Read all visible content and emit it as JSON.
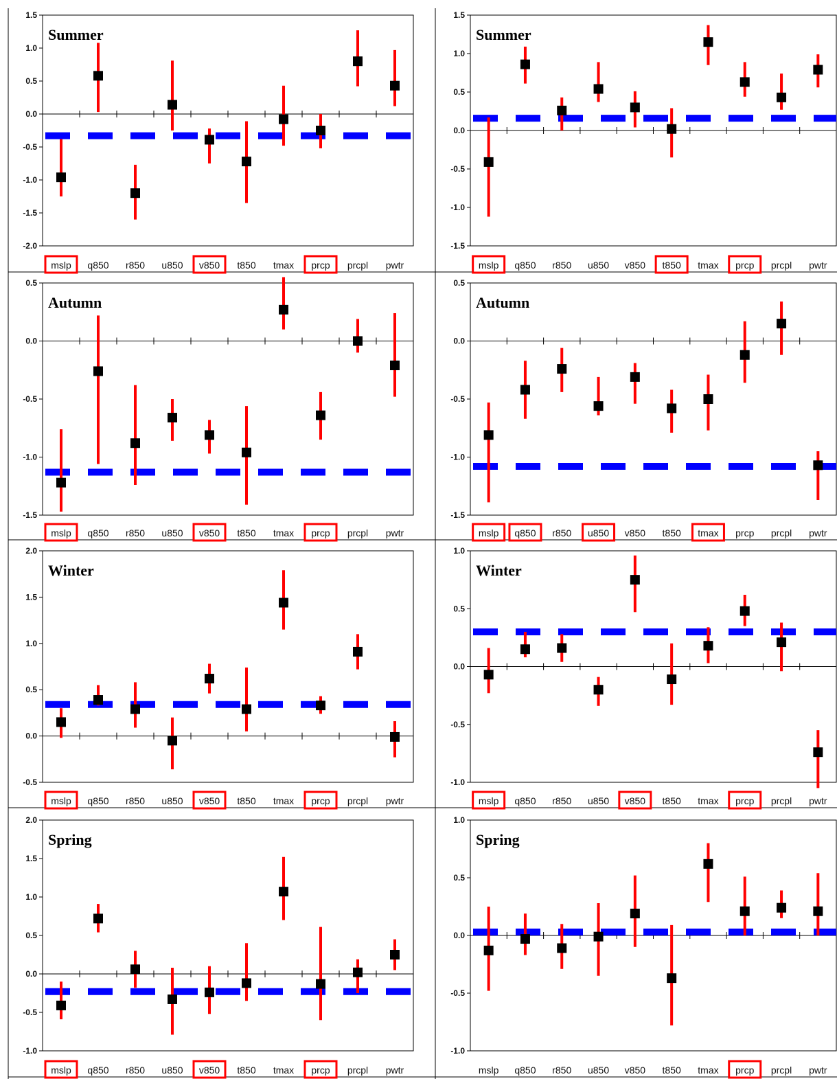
{
  "categories": [
    "mslp",
    "q850",
    "r850",
    "u850",
    "v850",
    "t850",
    "tmax",
    "prcp",
    "prcpl",
    "pwtr"
  ],
  "colors": {
    "marker": "#000000",
    "error_bar": "#ff0000",
    "reference_line": "#0000ff",
    "highlight_box": "#ff0000"
  },
  "chart_data": [
    {
      "type": "scatter",
      "title": "Summer",
      "ylim": [
        -2.0,
        1.5
      ],
      "yticks": [
        "1.5",
        "1.0",
        "0.5",
        "0.0",
        "-0.5",
        "-1.0",
        "-1.5",
        "-2.0"
      ],
      "reference": -0.33,
      "highlighted": [
        "mslp",
        "v850",
        "prcp"
      ],
      "values": [
        -0.96,
        0.58,
        -1.2,
        0.14,
        -0.39,
        -0.72,
        -0.08,
        -0.25,
        0.8,
        0.43
      ],
      "lower": [
        -1.25,
        0.03,
        -1.6,
        -0.25,
        -0.75,
        -1.35,
        -0.48,
        -0.52,
        0.42,
        0.12
      ],
      "upper": [
        -0.38,
        1.08,
        -0.77,
        0.81,
        -0.22,
        -0.11,
        0.43,
        0.0,
        1.27,
        0.97
      ]
    },
    {
      "type": "scatter",
      "title": "Summer",
      "ylim": [
        -1.5,
        1.5
      ],
      "yticks": [
        "1.5",
        "1.0",
        "0.5",
        "0.0",
        "-0.5",
        "-1.0",
        "-1.5"
      ],
      "reference": 0.16,
      "highlighted": [
        "mslp",
        "t850",
        "prcp"
      ],
      "values": [
        -0.41,
        0.86,
        0.26,
        0.54,
        0.3,
        0.02,
        1.15,
        0.63,
        0.43,
        0.79
      ],
      "lower": [
        -1.12,
        0.61,
        0.0,
        0.37,
        0.04,
        -0.35,
        0.85,
        0.44,
        0.27,
        0.56
      ],
      "upper": [
        0.17,
        1.09,
        0.43,
        0.89,
        0.51,
        0.29,
        1.37,
        0.89,
        0.74,
        0.99
      ]
    },
    {
      "type": "scatter",
      "title": "Autumn",
      "ylim": [
        -1.5,
        0.5
      ],
      "yticks": [
        "0.5",
        "0.0",
        "-0.5",
        "-1.0",
        "-1.5"
      ],
      "reference": -1.13,
      "highlighted": [
        "mslp",
        "v850",
        "prcp"
      ],
      "values": [
        -1.22,
        -0.26,
        -0.88,
        -0.66,
        -0.81,
        -0.96,
        0.27,
        -0.64,
        0.0,
        -0.21
      ],
      "lower": [
        -1.47,
        -1.06,
        -1.24,
        -0.86,
        -0.97,
        -1.41,
        0.1,
        -0.85,
        -0.1,
        -0.48
      ],
      "upper": [
        -0.76,
        0.22,
        -0.38,
        -0.5,
        -0.68,
        -0.56,
        0.55,
        -0.44,
        0.19,
        0.24
      ]
    },
    {
      "type": "scatter",
      "title": "Autumn",
      "ylim": [
        -1.5,
        0.5
      ],
      "yticks": [
        "0.5",
        "0.0",
        "-0.5",
        "-1.0",
        "-1.5"
      ],
      "reference": -1.08,
      "highlighted": [
        "mslp",
        "q850",
        "u850",
        "tmax"
      ],
      "values": [
        -0.81,
        -0.42,
        -0.24,
        -0.56,
        -0.31,
        -0.58,
        -0.5,
        -0.12,
        0.15,
        -1.07
      ],
      "lower": [
        -1.39,
        -0.67,
        -0.44,
        -0.64,
        -0.54,
        -0.79,
        -0.77,
        -0.36,
        -0.12,
        -1.37
      ],
      "upper": [
        -0.53,
        -0.17,
        -0.06,
        -0.31,
        -0.19,
        -0.42,
        -0.29,
        0.17,
        0.34,
        -0.95
      ]
    },
    {
      "type": "scatter",
      "title": "Winter",
      "ylim": [
        -0.5,
        2.0
      ],
      "yticks": [
        "2.0",
        "1.5",
        "1.0",
        "0.5",
        "0.0",
        "-0.5"
      ],
      "reference": 0.34,
      "highlighted": [
        "mslp",
        "v850",
        "prcp"
      ],
      "values": [
        0.15,
        0.39,
        0.29,
        -0.05,
        0.62,
        0.29,
        1.44,
        0.33,
        0.91,
        -0.01
      ],
      "lower": [
        -0.02,
        0.33,
        0.09,
        -0.36,
        0.46,
        0.05,
        1.15,
        0.24,
        0.72,
        -0.23
      ],
      "upper": [
        0.3,
        0.55,
        0.58,
        0.2,
        0.78,
        0.74,
        1.79,
        0.43,
        1.1,
        0.16
      ]
    },
    {
      "type": "scatter",
      "title": "Winter",
      "ylim": [
        -1.0,
        1.0
      ],
      "yticks": [
        "1.0",
        "0.5",
        "0.0",
        "-0.5",
        "-1.0"
      ],
      "reference": 0.3,
      "highlighted": [
        "mslp",
        "v850",
        "prcp"
      ],
      "values": [
        -0.07,
        0.15,
        0.16,
        -0.2,
        0.75,
        -0.11,
        0.18,
        0.48,
        0.21,
        -0.74
      ],
      "lower": [
        -0.23,
        0.08,
        0.04,
        -0.34,
        0.47,
        -0.33,
        0.03,
        0.35,
        -0.04,
        -1.05
      ],
      "upper": [
        0.16,
        0.3,
        0.28,
        -0.09,
        0.96,
        0.2,
        0.34,
        0.62,
        0.38,
        -0.55
      ]
    },
    {
      "type": "scatter",
      "title": "Spring",
      "ylim": [
        -1.0,
        2.0
      ],
      "yticks": [
        "2.0",
        "1.5",
        "1.0",
        "0.5",
        "0.0",
        "-0.5",
        "-1.0"
      ],
      "reference": -0.23,
      "highlighted": [
        "mslp",
        "v850",
        "prcp"
      ],
      "values": [
        -0.41,
        0.72,
        0.06,
        -0.33,
        -0.24,
        -0.12,
        1.07,
        -0.13,
        0.02,
        0.25
      ],
      "lower": [
        -0.59,
        0.54,
        -0.18,
        -0.79,
        -0.52,
        -0.35,
        0.7,
        -0.6,
        -0.25,
        0.05
      ],
      "upper": [
        -0.1,
        0.91,
        0.3,
        0.08,
        0.1,
        0.4,
        1.52,
        0.61,
        0.19,
        0.45
      ]
    },
    {
      "type": "scatter",
      "title": "Spring",
      "ylim": [
        -1.0,
        1.0
      ],
      "yticks": [
        "1.0",
        "0.5",
        "0.0",
        "-0.5",
        "-1.0"
      ],
      "reference": 0.03,
      "highlighted": [
        "prcp"
      ],
      "values": [
        -0.13,
        -0.03,
        -0.11,
        -0.01,
        0.19,
        -0.37,
        0.62,
        0.21,
        0.24,
        0.21
      ],
      "lower": [
        -0.48,
        -0.17,
        -0.29,
        -0.35,
        -0.1,
        -0.78,
        0.29,
        0.0,
        0.15,
        0.0
      ],
      "upper": [
        0.25,
        0.19,
        0.1,
        0.28,
        0.52,
        0.09,
        0.8,
        0.51,
        0.39,
        0.54
      ]
    }
  ]
}
